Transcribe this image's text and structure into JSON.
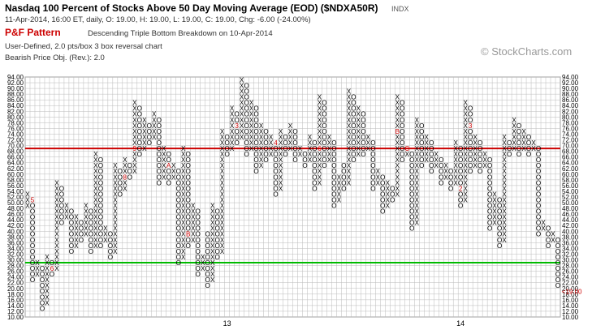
{
  "header": {
    "title": "Nasdaq 100 Percent of Stocks Above 50 Day Moving Average (EOD) ($NDXA50R)",
    "symbol_tag": "INDX",
    "subtitle": "11-Apr-2014, 16:00 ET, daily, O: 19.00, H: 19.00, L: 19.00, C: 19.00, Chg: -6.00 (-24.00%)",
    "pattern_label": "P&F Pattern",
    "pattern_desc": "Descending Triple Bottom Breakdown on 10-Apr-2014",
    "box_info": "User-Defined, 2.0 pts/box 3 box reversal chart",
    "price_objective": "Bearish Price Obj. (Rev.): 2.0"
  },
  "watermark": "© StockCharts.com",
  "colors": {
    "x_mark": "#000000",
    "o_mark": "#000000",
    "month_marker": "#cc0000",
    "resistance_line": "#cc0000",
    "support_line": "#00bb00",
    "grid": "#bbbbbb",
    "last_price_label": "#cc0000"
  },
  "chart_data": {
    "type": "point-and-figure",
    "box_size": 2,
    "reversal": 3,
    "ylim": [
      10,
      94
    ],
    "y_ticks": [
      10.0,
      12.0,
      14.0,
      16.0,
      18.0,
      20.0,
      22.0,
      24.0,
      26.0,
      28.0,
      30.0,
      32.0,
      34.0,
      36.0,
      38.0,
      40.0,
      42.0,
      44.0,
      46.0,
      48.0,
      50.0,
      52.0,
      54.0,
      56.0,
      58.0,
      60.0,
      62.0,
      64.0,
      66.0,
      68.0,
      70.0,
      72.0,
      74.0,
      76.0,
      78.0,
      80.0,
      82.0,
      84.0,
      86.0,
      88.0,
      90.0,
      92.0,
      94.0
    ],
    "x_axis_labels": [
      {
        "label": "13",
        "column": 41
      },
      {
        "label": "14",
        "column": 89
      }
    ],
    "last_value_label": "19.00",
    "resistance_level": 69,
    "support_level": 29,
    "grid": true,
    "columns": [
      {
        "type": "X",
        "low": 48,
        "high": 52
      },
      {
        "type": "O",
        "low": 22,
        "high": 50
      },
      {
        "type": "X",
        "low": 24,
        "high": 28
      },
      {
        "type": "O",
        "low": 12,
        "high": 26
      },
      {
        "type": "X",
        "low": 14,
        "high": 30
      },
      {
        "type": "O",
        "low": 24,
        "high": 28
      },
      {
        "type": "X",
        "low": 26,
        "high": 56
      },
      {
        "type": "O",
        "low": 42,
        "high": 54
      },
      {
        "type": "X",
        "low": 44,
        "high": 48
      },
      {
        "type": "O",
        "low": 32,
        "high": 46
      },
      {
        "type": "X",
        "low": 34,
        "high": 44
      },
      {
        "type": "O",
        "low": 36,
        "high": 42
      },
      {
        "type": "X",
        "low": 38,
        "high": 48
      },
      {
        "type": "O",
        "low": 32,
        "high": 46
      },
      {
        "type": "X",
        "low": 34,
        "high": 66
      },
      {
        "type": "O",
        "low": 34,
        "high": 64
      },
      {
        "type": "X",
        "low": 36,
        "high": 40
      },
      {
        "type": "O",
        "low": 30,
        "high": 38
      },
      {
        "type": "X",
        "low": 32,
        "high": 62
      },
      {
        "type": "O",
        "low": 52,
        "high": 60
      },
      {
        "type": "X",
        "low": 54,
        "high": 64
      },
      {
        "type": "O",
        "low": 58,
        "high": 62
      },
      {
        "type": "X",
        "low": 60,
        "high": 84
      },
      {
        "type": "O",
        "low": 66,
        "high": 82
      },
      {
        "type": "X",
        "low": 68,
        "high": 78
      },
      {
        "type": "O",
        "low": 70,
        "high": 76
      },
      {
        "type": "X",
        "low": 72,
        "high": 80
      },
      {
        "type": "O",
        "low": 56,
        "high": 78
      },
      {
        "type": "X",
        "low": 58,
        "high": 68
      },
      {
        "type": "O",
        "low": 56,
        "high": 66
      },
      {
        "type": "X",
        "low": 58,
        "high": 62
      },
      {
        "type": "O",
        "low": 28,
        "high": 60
      },
      {
        "type": "X",
        "low": 30,
        "high": 68
      },
      {
        "type": "O",
        "low": 34,
        "high": 66
      },
      {
        "type": "X",
        "low": 36,
        "high": 48
      },
      {
        "type": "O",
        "low": 24,
        "high": 46
      },
      {
        "type": "X",
        "low": 26,
        "high": 30
      },
      {
        "type": "O",
        "low": 20,
        "high": 38
      },
      {
        "type": "X",
        "low": 22,
        "high": 48
      },
      {
        "type": "O",
        "low": 30,
        "high": 46
      },
      {
        "type": "X",
        "low": 32,
        "high": 74
      },
      {
        "type": "O",
        "low": 66,
        "high": 72
      },
      {
        "type": "X",
        "low": 68,
        "high": 82
      },
      {
        "type": "O",
        "low": 70,
        "high": 80
      },
      {
        "type": "X",
        "low": 72,
        "high": 92
      },
      {
        "type": "O",
        "low": 66,
        "high": 90
      },
      {
        "type": "X",
        "low": 68,
        "high": 84
      },
      {
        "type": "O",
        "low": 60,
        "high": 82
      },
      {
        "type": "X",
        "low": 62,
        "high": 76
      },
      {
        "type": "O",
        "low": 64,
        "high": 74
      },
      {
        "type": "X",
        "low": 66,
        "high": 72
      },
      {
        "type": "O",
        "low": 52,
        "high": 70
      },
      {
        "type": "X",
        "low": 54,
        "high": 74
      },
      {
        "type": "O",
        "low": 66,
        "high": 72
      },
      {
        "type": "X",
        "low": 68,
        "high": 76
      },
      {
        "type": "O",
        "low": 64,
        "high": 74
      },
      {
        "type": "X",
        "low": 66,
        "high": 68
      },
      {
        "type": "O",
        "low": 62,
        "high": 66
      },
      {
        "type": "X",
        "low": 64,
        "high": 72
      },
      {
        "type": "O",
        "low": 54,
        "high": 70
      },
      {
        "type": "X",
        "low": 56,
        "high": 86
      },
      {
        "type": "O",
        "low": 62,
        "high": 84
      },
      {
        "type": "X",
        "low": 64,
        "high": 72
      },
      {
        "type": "O",
        "low": 48,
        "high": 70
      },
      {
        "type": "X",
        "low": 50,
        "high": 58
      },
      {
        "type": "O",
        "low": 54,
        "high": 62
      },
      {
        "type": "X",
        "low": 56,
        "high": 88
      },
      {
        "type": "O",
        "low": 64,
        "high": 86
      },
      {
        "type": "X",
        "low": 66,
        "high": 82
      },
      {
        "type": "O",
        "low": 66,
        "high": 80
      },
      {
        "type": "X",
        "low": 68,
        "high": 72
      },
      {
        "type": "O",
        "low": 54,
        "high": 70
      },
      {
        "type": "X",
        "low": 56,
        "high": 60
      },
      {
        "type": "O",
        "low": 46,
        "high": 58
      },
      {
        "type": "X",
        "low": 48,
        "high": 56
      },
      {
        "type": "O",
        "low": 50,
        "high": 54
      },
      {
        "type": "X",
        "low": 52,
        "high": 86
      },
      {
        "type": "O",
        "low": 64,
        "high": 84
      },
      {
        "type": "X",
        "low": 66,
        "high": 68
      },
      {
        "type": "O",
        "low": 40,
        "high": 66
      },
      {
        "type": "X",
        "low": 42,
        "high": 78
      },
      {
        "type": "O",
        "low": 62,
        "high": 76
      },
      {
        "type": "X",
        "low": 64,
        "high": 72
      },
      {
        "type": "O",
        "low": 60,
        "high": 70
      },
      {
        "type": "X",
        "low": 62,
        "high": 66
      },
      {
        "type": "O",
        "low": 56,
        "high": 64
      },
      {
        "type": "X",
        "low": 58,
        "high": 62
      },
      {
        "type": "O",
        "low": 54,
        "high": 60
      },
      {
        "type": "X",
        "low": 56,
        "high": 70
      },
      {
        "type": "O",
        "low": 48,
        "high": 68
      },
      {
        "type": "X",
        "low": 50,
        "high": 84
      },
      {
        "type": "O",
        "low": 60,
        "high": 82
      },
      {
        "type": "X",
        "low": 62,
        "high": 72
      },
      {
        "type": "O",
        "low": 60,
        "high": 70
      },
      {
        "type": "X",
        "low": 62,
        "high": 66
      },
      {
        "type": "O",
        "low": 40,
        "high": 64
      },
      {
        "type": "X",
        "low": 42,
        "high": 52
      },
      {
        "type": "O",
        "low": 34,
        "high": 50
      },
      {
        "type": "X",
        "low": 36,
        "high": 72
      },
      {
        "type": "O",
        "low": 66,
        "high": 70
      },
      {
        "type": "X",
        "low": 68,
        "high": 78
      },
      {
        "type": "O",
        "low": 66,
        "high": 76
      },
      {
        "type": "X",
        "low": 68,
        "high": 74
      },
      {
        "type": "O",
        "low": 66,
        "high": 72
      },
      {
        "type": "X",
        "low": 68,
        "high": 70
      },
      {
        "type": "O",
        "low": 38,
        "high": 68
      },
      {
        "type": "X",
        "low": 40,
        "high": 42
      },
      {
        "type": "O",
        "low": 34,
        "high": 40
      },
      {
        "type": "X",
        "low": 36,
        "high": 38
      },
      {
        "type": "O",
        "low": 20,
        "high": 36
      }
    ],
    "month_markers": [
      {
        "label": "5",
        "column": 1,
        "value": 50
      },
      {
        "label": "6",
        "column": 5,
        "value": 26
      },
      {
        "label": "8",
        "column": 20,
        "value": 58
      },
      {
        "label": "9",
        "column": 22,
        "value": 68
      },
      {
        "label": "A",
        "column": 29,
        "value": 62
      },
      {
        "label": "B",
        "column": 33,
        "value": 38
      },
      {
        "label": "C",
        "column": 36,
        "value": 56
      },
      {
        "label": "2",
        "column": 40,
        "value": 92
      },
      {
        "label": "3",
        "column": 43,
        "value": 76
      },
      {
        "label": "4",
        "column": 51,
        "value": 70
      },
      {
        "label": "5",
        "column": 56,
        "value": 72
      },
      {
        "label": "6",
        "column": 60,
        "value": 68
      },
      {
        "label": "7",
        "column": 62,
        "value": 60
      },
      {
        "label": "8",
        "column": 65,
        "value": 78
      },
      {
        "label": "9",
        "column": 69,
        "value": 52
      },
      {
        "label": "A",
        "column": 73,
        "value": 72
      },
      {
        "label": "B",
        "column": 76,
        "value": 74
      },
      {
        "label": "C",
        "column": 78,
        "value": 68
      },
      {
        "label": "1",
        "column": 84,
        "value": 82
      },
      {
        "label": "2",
        "column": 89,
        "value": 54
      },
      {
        "label": "3",
        "column": 91,
        "value": 76
      },
      {
        "label": "4",
        "column": 107,
        "value": 24
      }
    ]
  }
}
